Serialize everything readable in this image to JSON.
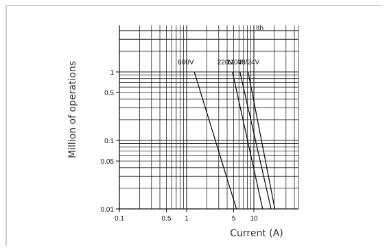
{
  "chart_data": {
    "type": "line",
    "title": "",
    "xlabel": "Current (A)",
    "ylabel": "Million of operations",
    "x_scale": "log",
    "y_scale": "log",
    "xlim": [
      0.1,
      30
    ],
    "ylim": [
      0.01,
      10
    ],
    "x_ticks": [
      {
        "value": 0.1,
        "label": "0.1"
      },
      {
        "value": 0.5,
        "label": "0.5"
      },
      {
        "value": 1,
        "label": "1"
      },
      {
        "value": 5,
        "label": "5"
      },
      {
        "value": 10,
        "label": "10"
      }
    ],
    "y_ticks": [
      {
        "value": 0.01,
        "label": "0.01"
      },
      {
        "value": 0.05,
        "label": "0.05"
      },
      {
        "value": 0.1,
        "label": "0.1"
      },
      {
        "value": 0.5,
        "label": "0.5"
      },
      {
        "value": 1,
        "label": "1"
      }
    ],
    "grid": true,
    "series": [
      {
        "name": "600V",
        "x": [
          1.3,
          5.5
        ],
        "y": [
          1,
          0.01
        ]
      },
      {
        "name": "220V",
        "x": [
          4.8,
          13.5
        ],
        "y": [
          1,
          0.01
        ]
      },
      {
        "name": "110V",
        "x": [
          6.2,
          18
        ],
        "y": [
          1,
          0.01
        ]
      },
      {
        "name": "48/24V",
        "x": [
          8.2,
          20.5
        ],
        "y": [
          1,
          0.01
        ]
      }
    ],
    "reference_lines": [
      {
        "axis": "x",
        "value": 10,
        "label": "Ith",
        "style": "dashed"
      }
    ],
    "colors": {
      "lines": "#111111",
      "grid": "#222222",
      "frame": "#cfcfcf"
    }
  }
}
